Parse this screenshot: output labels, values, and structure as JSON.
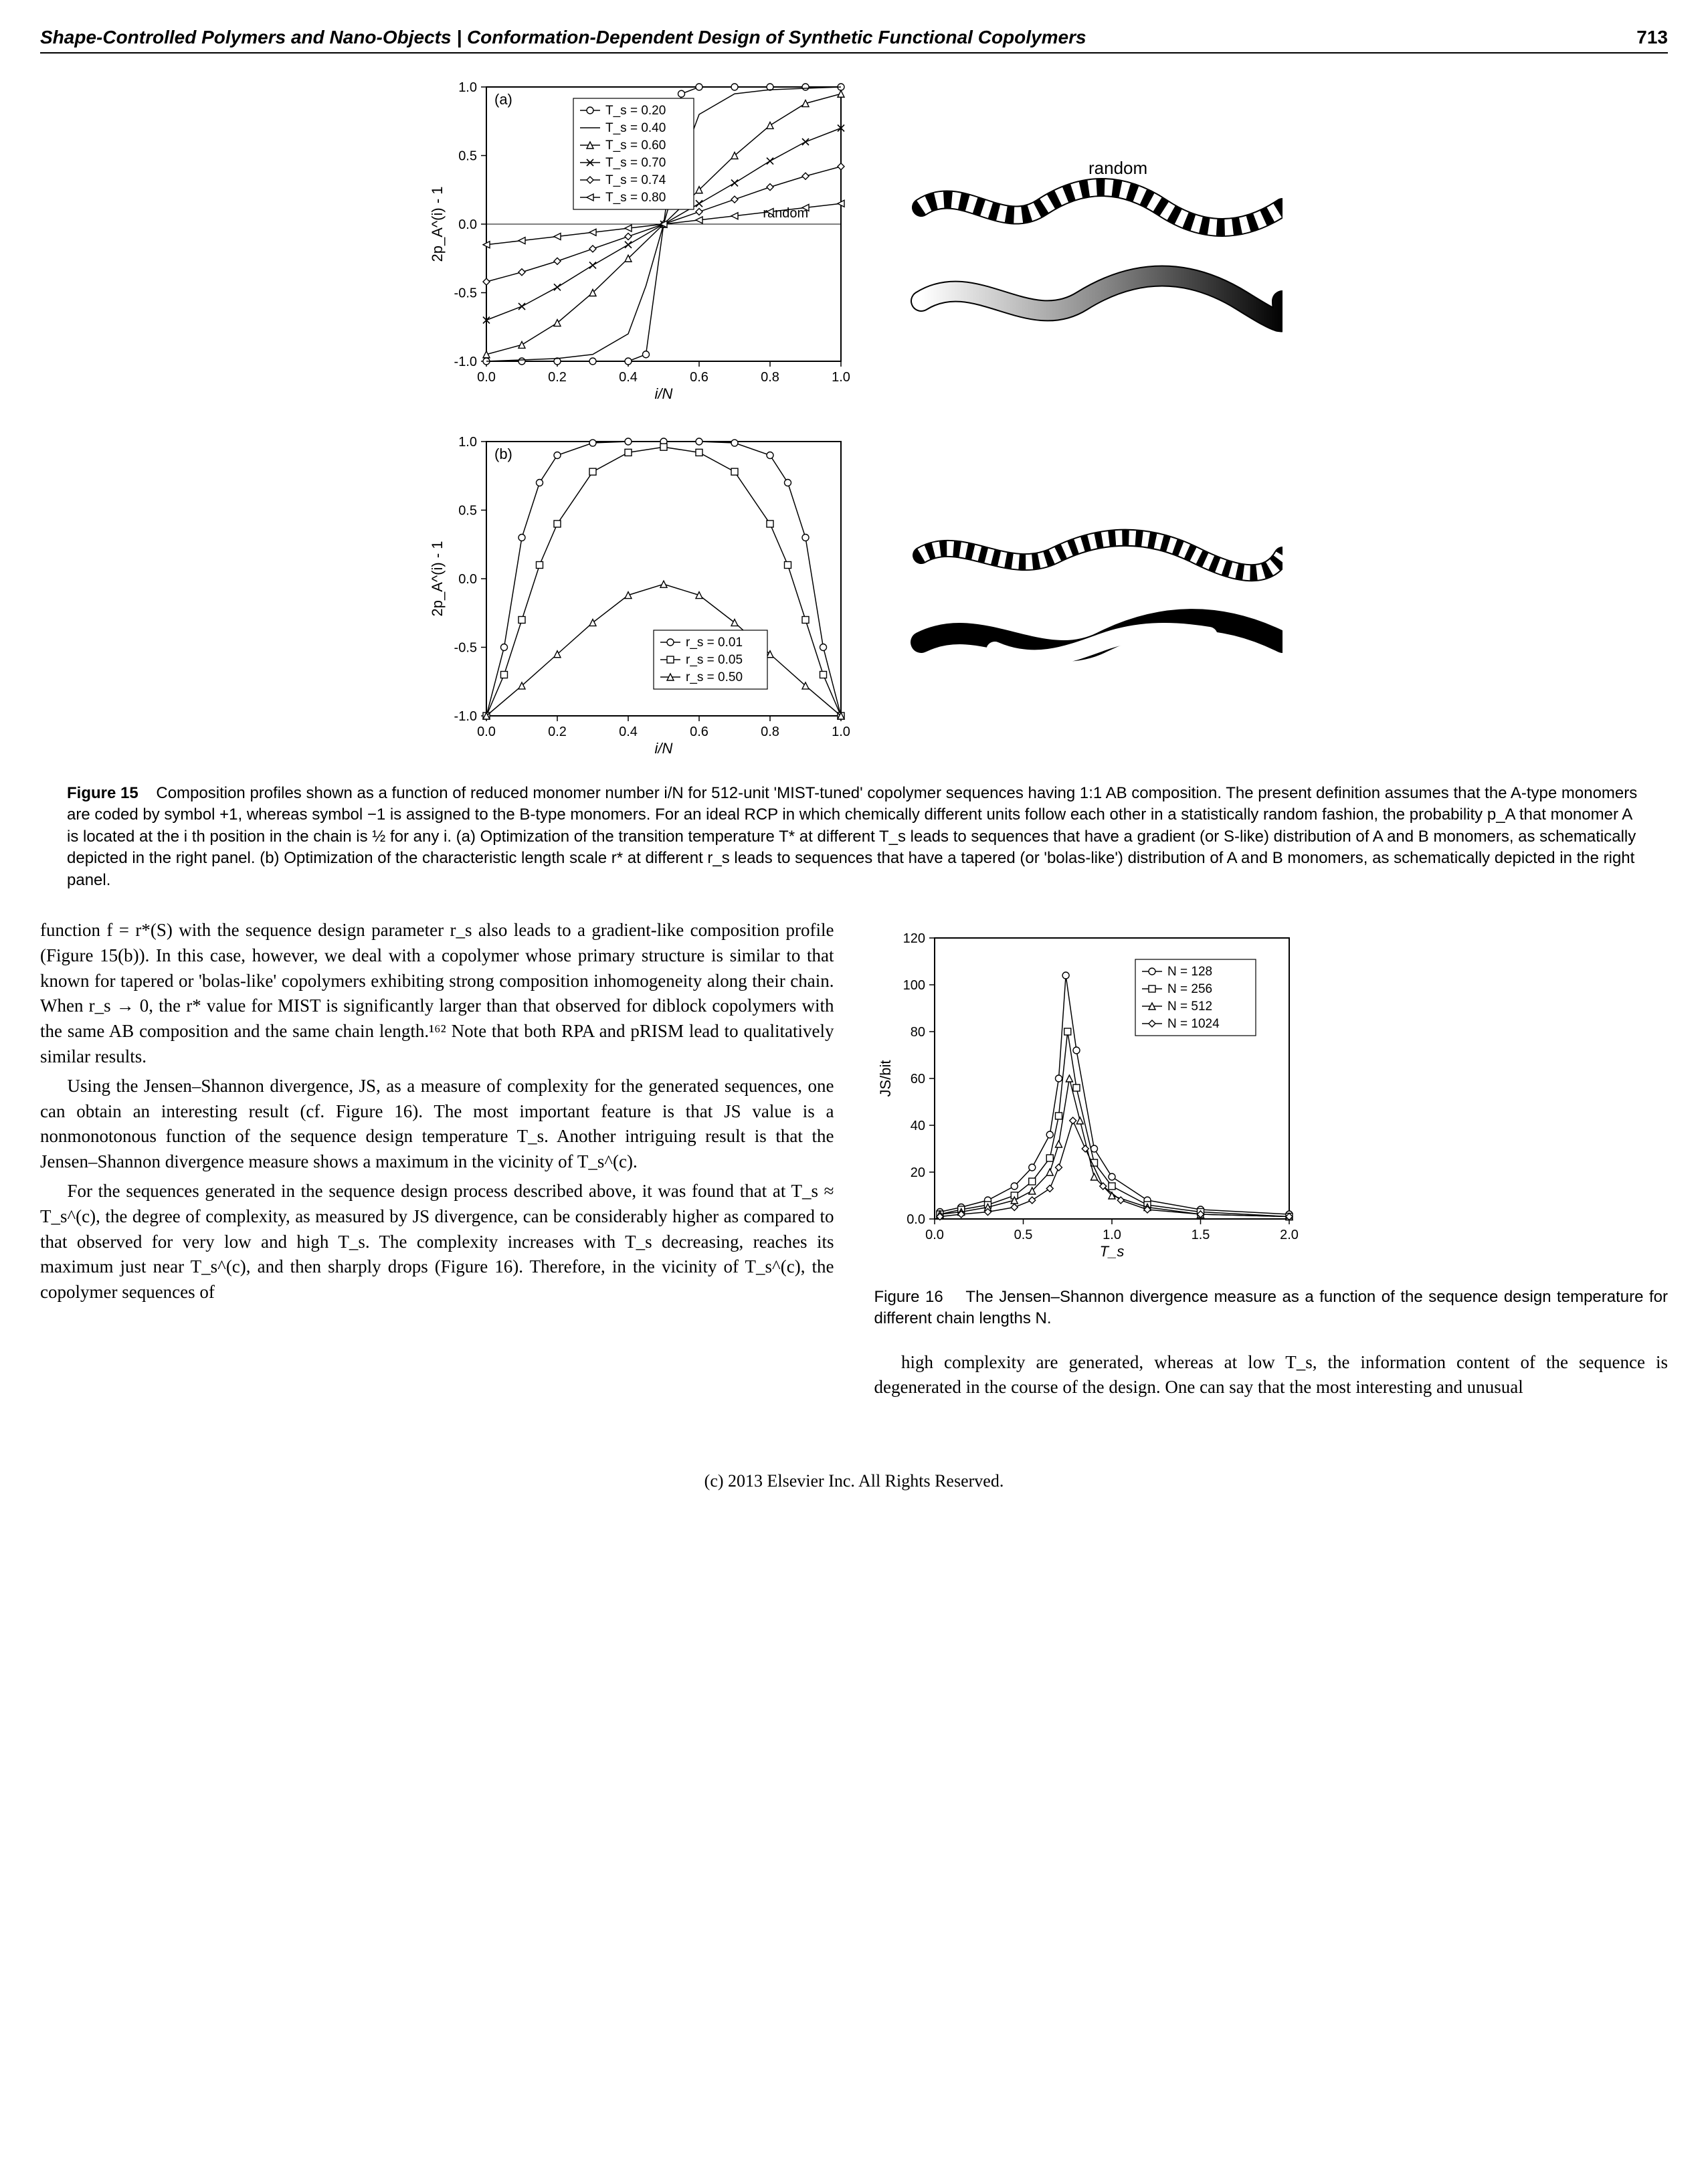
{
  "header": {
    "title": "Shape-Controlled Polymers and Nano-Objects | Conformation-Dependent Design of Synthetic Functional Copolymers",
    "page": "713"
  },
  "figure15": {
    "panel_a": {
      "label": "(a)",
      "type": "line",
      "xlim": [
        0.0,
        1.0
      ],
      "ylim": [
        -1.0,
        1.0
      ],
      "xticks": [
        0.0,
        0.2,
        0.4,
        0.6,
        0.8,
        1.0
      ],
      "yticks": [
        -1.0,
        -0.5,
        0.0,
        0.5,
        1.0
      ],
      "xlabel": "i/N",
      "ylabel": "2p_A^(i) - 1",
      "label_fontsize": 22,
      "tick_fontsize": 20,
      "random_label": "random",
      "random_line": {
        "x": [
          0.0,
          1.0
        ],
        "y": [
          0.0,
          0.0
        ],
        "color": "#000000",
        "width": 1
      },
      "legend": [
        {
          "label": "T_s = 0.20",
          "marker": "circle"
        },
        {
          "label": "T_s = 0.40",
          "marker": "none"
        },
        {
          "label": "T_s = 0.60",
          "marker": "triangle"
        },
        {
          "label": "T_s = 0.70",
          "marker": "x"
        },
        {
          "label": "T_s = 0.74",
          "marker": "diamond"
        },
        {
          "label": "T_s = 0.80",
          "marker": "triangle-left"
        }
      ],
      "series": [
        {
          "name": "Ts020",
          "marker": "circle",
          "x": [
            0.0,
            0.1,
            0.2,
            0.3,
            0.4,
            0.45,
            0.55,
            0.6,
            0.7,
            0.8,
            0.9,
            1.0
          ],
          "y": [
            -1.0,
            -1.0,
            -1.0,
            -1.0,
            -1.0,
            -0.95,
            0.95,
            1.0,
            1.0,
            1.0,
            1.0,
            1.0
          ]
        },
        {
          "name": "Ts040",
          "marker": "none",
          "x": [
            0.0,
            0.1,
            0.2,
            0.3,
            0.4,
            0.45,
            0.5,
            0.55,
            0.6,
            0.7,
            0.8,
            0.9,
            1.0
          ],
          "y": [
            -1.0,
            -0.99,
            -0.98,
            -0.95,
            -0.8,
            -0.45,
            0.0,
            0.45,
            0.8,
            0.95,
            0.98,
            0.99,
            1.0
          ]
        },
        {
          "name": "Ts060",
          "marker": "triangle",
          "x": [
            0.0,
            0.1,
            0.2,
            0.3,
            0.4,
            0.5,
            0.6,
            0.7,
            0.8,
            0.9,
            1.0
          ],
          "y": [
            -0.95,
            -0.88,
            -0.72,
            -0.5,
            -0.25,
            0.0,
            0.25,
            0.5,
            0.72,
            0.88,
            0.95
          ]
        },
        {
          "name": "Ts070",
          "marker": "x",
          "x": [
            0.0,
            0.1,
            0.2,
            0.3,
            0.4,
            0.5,
            0.6,
            0.7,
            0.8,
            0.9,
            1.0
          ],
          "y": [
            -0.7,
            -0.6,
            -0.46,
            -0.3,
            -0.15,
            0.0,
            0.15,
            0.3,
            0.46,
            0.6,
            0.7
          ]
        },
        {
          "name": "Ts074",
          "marker": "diamond",
          "x": [
            0.0,
            0.1,
            0.2,
            0.3,
            0.4,
            0.5,
            0.6,
            0.7,
            0.8,
            0.9,
            1.0
          ],
          "y": [
            -0.42,
            -0.35,
            -0.27,
            -0.18,
            -0.09,
            0.0,
            0.09,
            0.18,
            0.27,
            0.35,
            0.42
          ]
        },
        {
          "name": "Ts080",
          "marker": "triangle-left",
          "x": [
            0.0,
            0.1,
            0.2,
            0.3,
            0.4,
            0.5,
            0.6,
            0.7,
            0.8,
            0.9,
            1.0
          ],
          "y": [
            -0.15,
            -0.12,
            -0.09,
            -0.06,
            -0.03,
            0.0,
            0.03,
            0.06,
            0.09,
            0.12,
            0.15
          ]
        }
      ],
      "line_color": "#000000",
      "line_width": 1.5,
      "background_color": "#ffffff"
    },
    "panel_b": {
      "label": "(b)",
      "type": "line",
      "xlim": [
        0.0,
        1.0
      ],
      "ylim": [
        -1.0,
        1.0
      ],
      "xticks": [
        0.0,
        0.2,
        0.4,
        0.6,
        0.8,
        1.0
      ],
      "yticks": [
        -1.0,
        -0.5,
        0.0,
        0.5,
        1.0
      ],
      "xlabel": "i/N",
      "ylabel": "2p_A^(i) - 1",
      "label_fontsize": 22,
      "tick_fontsize": 20,
      "legend": [
        {
          "label": "r_s = 0.01",
          "marker": "circle"
        },
        {
          "label": "r_s = 0.05",
          "marker": "square"
        },
        {
          "label": "r_s = 0.50",
          "marker": "triangle"
        }
      ],
      "series": [
        {
          "name": "rs001",
          "marker": "circle",
          "x": [
            0.0,
            0.05,
            0.1,
            0.15,
            0.2,
            0.3,
            0.4,
            0.5,
            0.6,
            0.7,
            0.8,
            0.85,
            0.9,
            0.95,
            1.0
          ],
          "y": [
            -1.0,
            -0.5,
            0.3,
            0.7,
            0.9,
            0.99,
            1.0,
            1.0,
            1.0,
            0.99,
            0.9,
            0.7,
            0.3,
            -0.5,
            -1.0
          ]
        },
        {
          "name": "rs005",
          "marker": "square",
          "x": [
            0.0,
            0.05,
            0.1,
            0.15,
            0.2,
            0.3,
            0.4,
            0.5,
            0.6,
            0.7,
            0.8,
            0.85,
            0.9,
            0.95,
            1.0
          ],
          "y": [
            -1.0,
            -0.7,
            -0.3,
            0.1,
            0.4,
            0.78,
            0.92,
            0.96,
            0.92,
            0.78,
            0.4,
            0.1,
            -0.3,
            -0.7,
            -1.0
          ]
        },
        {
          "name": "rs050",
          "marker": "triangle",
          "x": [
            0.0,
            0.1,
            0.2,
            0.3,
            0.4,
            0.5,
            0.6,
            0.7,
            0.8,
            0.9,
            1.0
          ],
          "y": [
            -1.0,
            -0.78,
            -0.55,
            -0.32,
            -0.12,
            -0.04,
            -0.12,
            -0.32,
            -0.55,
            -0.78,
            -1.0
          ]
        }
      ],
      "line_color": "#000000",
      "line_width": 1.5,
      "background_color": "#ffffff"
    },
    "caption": {
      "label": "Figure 15",
      "text": "Composition profiles shown as a function of reduced monomer number i/N for 512-unit 'MIST-tuned' copolymer sequences having 1:1 AB composition. The present definition assumes that the A-type monomers are coded by symbol +1, whereas symbol −1 is assigned to the B-type monomers. For an ideal RCP in which chemically different units follow each other in a statistically random fashion, the probability p_A that monomer A is located at the i th position in the chain is ½ for any i. (a) Optimization of the transition temperature T* at different T_s leads to sequences that have a gradient (or S-like) distribution of A and B monomers, as schematically depicted in the right panel. (b) Optimization of the characteristic length scale r* at different r_s leads to sequences that have a tapered (or 'bolas-like') distribution of A and B monomers, as schematically depicted in the right panel."
    }
  },
  "figure16": {
    "type": "line",
    "xlim": [
      0.0,
      2.0
    ],
    "ylim": [
      0,
      120
    ],
    "xticks": [
      0.0,
      0.5,
      1.0,
      1.5,
      2.0
    ],
    "yticks": [
      0,
      20,
      40,
      60,
      80,
      100,
      120
    ],
    "xlabel": "T_s",
    "ylabel": "JS/bit",
    "label_fontsize": 22,
    "tick_fontsize": 20,
    "legend": [
      {
        "label": "N = 128",
        "marker": "circle"
      },
      {
        "label": "N = 256",
        "marker": "square"
      },
      {
        "label": "N = 512",
        "marker": "triangle"
      },
      {
        "label": "N = 1024",
        "marker": "diamond"
      }
    ],
    "series": [
      {
        "name": "N128",
        "marker": "circle",
        "x": [
          0.03,
          0.15,
          0.3,
          0.45,
          0.55,
          0.65,
          0.7,
          0.74,
          0.8,
          0.9,
          1.0,
          1.2,
          1.5,
          2.0
        ],
        "y": [
          3,
          5,
          8,
          14,
          22,
          36,
          60,
          104,
          72,
          30,
          18,
          8,
          4,
          2
        ]
      },
      {
        "name": "N256",
        "marker": "square",
        "x": [
          0.03,
          0.15,
          0.3,
          0.45,
          0.55,
          0.65,
          0.7,
          0.75,
          0.8,
          0.9,
          1.0,
          1.2,
          1.5,
          2.0
        ],
        "y": [
          2,
          4,
          6,
          10,
          16,
          26,
          44,
          80,
          56,
          24,
          14,
          6,
          3,
          1
        ]
      },
      {
        "name": "N512",
        "marker": "triangle",
        "x": [
          0.03,
          0.15,
          0.3,
          0.45,
          0.55,
          0.65,
          0.7,
          0.76,
          0.82,
          0.9,
          1.0,
          1.2,
          1.5,
          2.0
        ],
        "y": [
          2,
          3,
          5,
          8,
          12,
          20,
          32,
          60,
          42,
          18,
          10,
          5,
          2,
          1
        ]
      },
      {
        "name": "N1024",
        "marker": "diamond",
        "x": [
          0.03,
          0.15,
          0.3,
          0.45,
          0.55,
          0.65,
          0.7,
          0.78,
          0.85,
          0.95,
          1.05,
          1.2,
          1.5,
          2.0
        ],
        "y": [
          1,
          2,
          3,
          5,
          8,
          13,
          22,
          42,
          30,
          14,
          8,
          4,
          2,
          1
        ]
      }
    ],
    "line_color": "#000000",
    "line_width": 1.5,
    "background_color": "#ffffff",
    "caption": {
      "label": "Figure 16",
      "text": "The Jensen–Shannon divergence measure as a function of the sequence design temperature for different chain lengths N."
    }
  },
  "body": {
    "p1": "function f = r*(S) with the sequence design parameter r_s also leads to a gradient-like composition profile (Figure 15(b)). In this case, however, we deal with a copolymer whose primary structure is similar to that known for tapered or 'bolas-like' copolymers exhibiting strong composition inhomogeneity along their chain. When r_s → 0, the r* value for MIST is significantly larger than that observed for diblock copolymers with the same AB composition and the same chain length.¹⁶² Note that both RPA and pRISM lead to qualitatively similar results.",
    "p2": "Using the Jensen–Shannon divergence, JS, as a measure of complexity for the generated sequences, one can obtain an interesting result (cf. Figure 16). The most important feature is that JS value is a nonmonotonous function of the sequence design temperature T_s. Another intriguing result is that the Jensen–Shannon divergence measure shows a maximum in the vicinity of T_s^(c).",
    "p3": "For the sequences generated in the sequence design process described above, it was found that at T_s ≈ T_s^(c), the degree of complexity, as measured by JS divergence, can be considerably higher as compared to that observed for very low and high T_s. The complexity increases with T_s decreasing, reaches its maximum just near T_s^(c), and then sharply drops (Figure 16). Therefore, in the vicinity of T_s^(c), the copolymer sequences of",
    "p4": "high complexity are generated, whereas at low T_s, the information content of the sequence is degenerated in the course of the design. One can say that the most interesting and unusual"
  },
  "footer": "(c) 2013 Elsevier Inc. All Rights Reserved."
}
